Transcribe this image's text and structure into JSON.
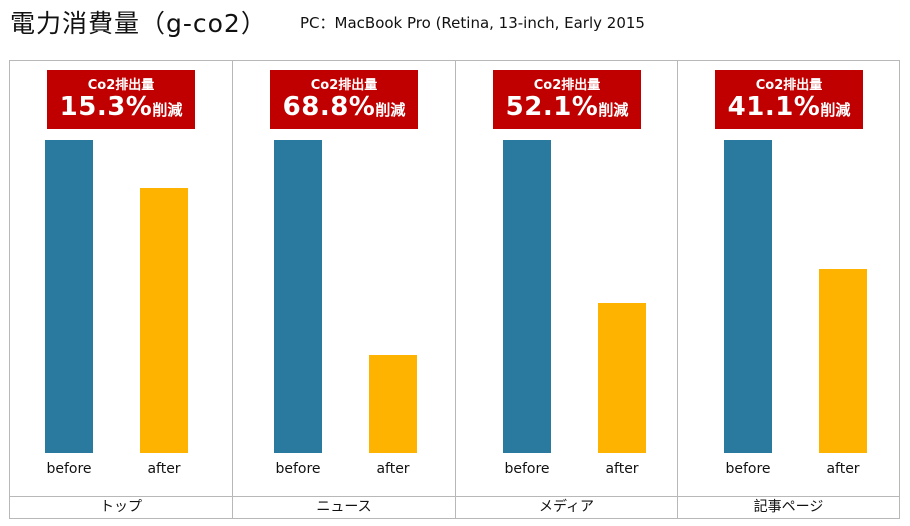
{
  "header": {
    "title": "電力消費量（g-co2）",
    "subtitle": "PC：MacBook Pro (Retina, 13-inch, Early 2015"
  },
  "colors": {
    "before": "#2a7aa0",
    "after": "#fdb300",
    "badge": "#c00000"
  },
  "chart_data": {
    "type": "bar",
    "title": "電力消費量（g-co2）",
    "ylim": [
      0,
      100
    ],
    "bar_labels": [
      "before",
      "after"
    ],
    "grid": false,
    "panels": [
      {
        "category": "トップ",
        "badge_label": "Co2排出量",
        "badge_value": "15.3%",
        "badge_suffix": "削減",
        "values": [
          100,
          84.7
        ]
      },
      {
        "category": "ニュース",
        "badge_label": "Co2排出量",
        "badge_value": "68.8%",
        "badge_suffix": "削減",
        "values": [
          100,
          31.2
        ]
      },
      {
        "category": "メディア",
        "badge_label": "Co2排出量",
        "badge_value": "52.1%",
        "badge_suffix": "削減",
        "values": [
          100,
          47.9
        ]
      },
      {
        "category": "記事ページ",
        "badge_label": "Co2排出量",
        "badge_value": "41.1%",
        "badge_suffix": "削減",
        "values": [
          100,
          58.9
        ]
      }
    ]
  }
}
